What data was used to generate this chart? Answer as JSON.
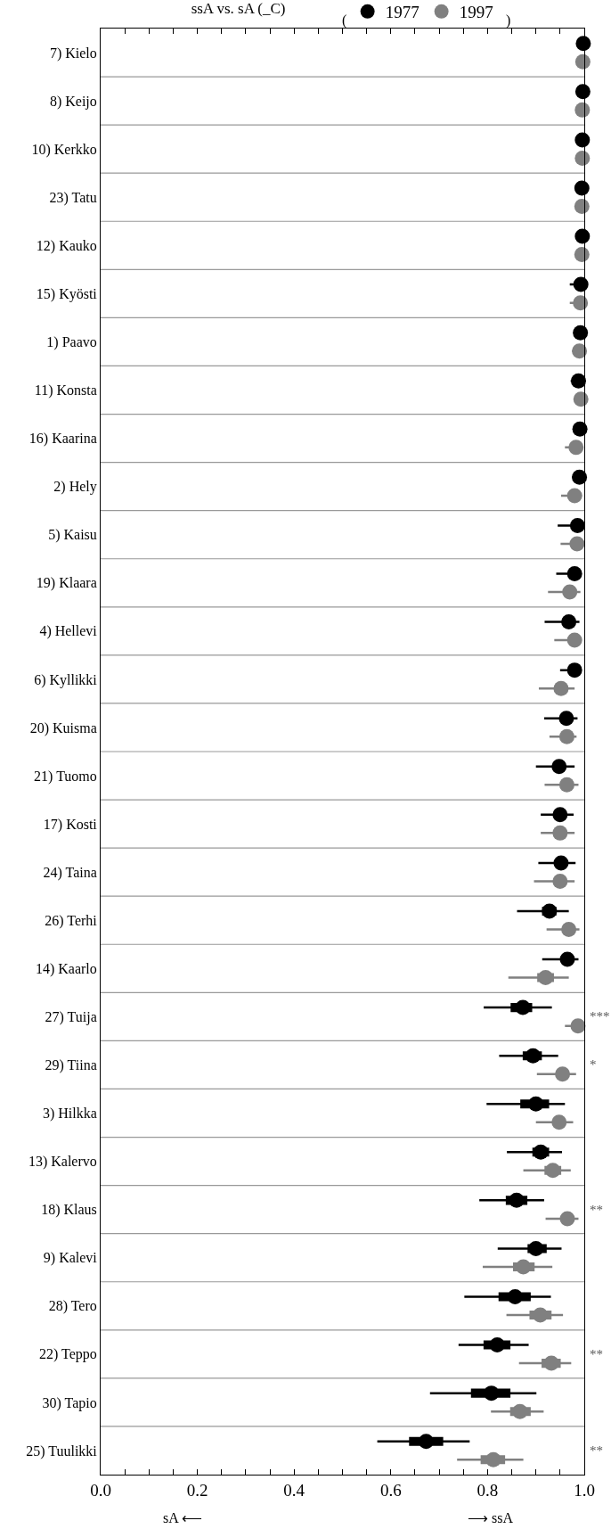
{
  "chart_data": {
    "type": "box",
    "orientation": "horizontal",
    "title": "ssA vs. sA (_C)",
    "legend": "top",
    "marker": "circle",
    "grid": "y",
    "categories": [
      "7) Kielo",
      "8) Keijo",
      "10) Kerkko",
      "23) Tatu",
      "12) Kauko",
      "15) Kyösti",
      "1) Paavo",
      "11) Konsta",
      "16) Kaarina",
      "2) Hely",
      "5) Kaisu",
      "19) Klaara",
      "4) Hellevi",
      "6) Kyllikki",
      "20) Kuisma",
      "21) Tuomo",
      "17) Kosti",
      "24) Taina",
      "26) Terhi",
      "14) Kaarlo",
      "27) Tuija",
      "29) Tiina",
      "3) Hilkka",
      "13) Kalervo",
      "18) Klaus",
      "9) Kalevi",
      "28) Tero",
      "22) Teppo",
      "30) Tapio",
      "25) Tuulikki"
    ],
    "xlim": [
      0,
      1
    ],
    "xticks": [
      {
        "value": 0,
        "label": "0.0"
      },
      {
        "value": 0.05,
        "label": null
      },
      {
        "value": 0.1,
        "label": null
      },
      {
        "value": 0.15,
        "label": null
      },
      0.2,
      {
        "value": 0.25,
        "label": null
      },
      {
        "value": 0.3,
        "label": null
      },
      {
        "value": 0.35,
        "label": null
      },
      0.4,
      {
        "value": 0.45,
        "label": null
      },
      {
        "value": 0.5,
        "label": null
      },
      {
        "value": 0.55,
        "label": null
      },
      0.6,
      {
        "value": 0.65,
        "label": null
      },
      {
        "value": 0.7,
        "label": null
      },
      {
        "value": 0.75,
        "label": null
      },
      0.8,
      {
        "value": 0.85,
        "label": null
      },
      {
        "value": 0.9,
        "label": null
      },
      {
        "value": 0.95,
        "label": null
      },
      {
        "value": 1,
        "label": "1.0"
      }
    ],
    "series": [
      {
        "color": "#000000",
        "boxes": [
          {
            "low": 0.998,
            "q1": 0.998,
            "median": 0.998,
            "q3": 0.998,
            "high": 0.998
          },
          {
            "low": 0.997,
            "q1": 0.997,
            "median": 0.997,
            "q3": 0.997,
            "high": 0.997
          },
          {
            "low": 0.996,
            "q1": 0.996,
            "median": 0.996,
            "q3": 0.996,
            "high": 0.996
          },
          {
            "low": 0.995,
            "q1": 0.995,
            "median": 0.995,
            "q3": 0.995,
            "high": 0.995
          },
          {
            "low": 0.996,
            "q1": 0.996,
            "median": 0.996,
            "q3": 0.996,
            "high": 0.996
          },
          {
            "low": 0.97,
            "q1": 0.993,
            "median": 0.993,
            "q3": 0.993,
            "high": 0.993
          },
          {
            "low": 0.978,
            "q1": 0.992,
            "median": 0.992,
            "q3": 0.992,
            "high": 0.992
          },
          {
            "low": 0.972,
            "q1": 0.988,
            "median": 0.988,
            "q3": 0.988,
            "high": 0.988
          },
          {
            "low": 0.978,
            "q1": 0.991,
            "median": 0.991,
            "q3": 0.991,
            "high": 0.991
          },
          {
            "low": 0.975,
            "q1": 0.99,
            "median": 0.99,
            "q3": 0.99,
            "high": 0.99
          },
          {
            "low": 0.945,
            "q1": 0.986,
            "median": 0.986,
            "q3": 0.986,
            "high": 0.986
          },
          {
            "low": 0.942,
            "q1": 0.98,
            "median": 0.98,
            "q3": 0.98,
            "high": 0.98
          },
          {
            "low": 0.918,
            "q1": 0.968,
            "median": 0.968,
            "q3": 0.968,
            "high": 0.99
          },
          {
            "low": 0.95,
            "q1": 0.98,
            "median": 0.98,
            "q3": 0.98,
            "high": 0.98
          },
          {
            "low": 0.917,
            "q1": 0.963,
            "median": 0.963,
            "q3": 0.963,
            "high": 0.986
          },
          {
            "low": 0.9,
            "q1": 0.948,
            "median": 0.948,
            "q3": 0.948,
            "high": 0.98
          },
          {
            "low": 0.91,
            "q1": 0.95,
            "median": 0.95,
            "q3": 0.95,
            "high": 0.978
          },
          {
            "low": 0.905,
            "q1": 0.952,
            "median": 0.952,
            "q3": 0.952,
            "high": 0.982
          },
          {
            "low": 0.861,
            "q1": 0.915,
            "median": 0.928,
            "q3": 0.94,
            "high": 0.968
          },
          {
            "low": 0.913,
            "q1": 0.965,
            "median": 0.965,
            "q3": 0.965,
            "high": 0.988
          },
          {
            "low": 0.792,
            "q1": 0.85,
            "median": 0.873,
            "q3": 0.89,
            "high": 0.933
          },
          {
            "low": 0.824,
            "q1": 0.875,
            "median": 0.894,
            "q3": 0.91,
            "high": 0.946
          },
          {
            "low": 0.798,
            "q1": 0.87,
            "median": 0.9,
            "q3": 0.925,
            "high": 0.96
          },
          {
            "low": 0.84,
            "q1": 0.895,
            "median": 0.91,
            "q3": 0.925,
            "high": 0.954
          },
          {
            "low": 0.783,
            "q1": 0.84,
            "median": 0.86,
            "q3": 0.88,
            "high": 0.917
          },
          {
            "low": 0.821,
            "q1": 0.885,
            "median": 0.9,
            "q3": 0.92,
            "high": 0.953
          },
          {
            "low": 0.752,
            "q1": 0.825,
            "median": 0.857,
            "q3": 0.887,
            "high": 0.931
          },
          {
            "low": 0.74,
            "q1": 0.794,
            "median": 0.82,
            "q3": 0.845,
            "high": 0.885
          },
          {
            "low": 0.681,
            "q1": 0.768,
            "median": 0.808,
            "q3": 0.845,
            "high": 0.901
          },
          {
            "low": 0.572,
            "q1": 0.64,
            "median": 0.673,
            "q3": 0.706,
            "high": 0.763
          }
        ]
      },
      {
        "color": "#808080",
        "boxes": [
          {
            "low": 0.997,
            "q1": 0.997,
            "median": 0.997,
            "q3": 0.997,
            "high": 0.997
          },
          {
            "low": 0.996,
            "q1": 0.996,
            "median": 0.996,
            "q3": 0.996,
            "high": 0.996
          },
          {
            "low": 0.996,
            "q1": 0.996,
            "median": 0.996,
            "q3": 0.996,
            "high": 0.996
          },
          {
            "low": 0.995,
            "q1": 0.995,
            "median": 0.995,
            "q3": 0.995,
            "high": 0.995
          },
          {
            "low": 0.995,
            "q1": 0.995,
            "median": 0.995,
            "q3": 0.995,
            "high": 0.995
          },
          {
            "low": 0.97,
            "q1": 0.992,
            "median": 0.992,
            "q3": 0.992,
            "high": 0.992
          },
          {
            "low": 0.975,
            "q1": 0.99,
            "median": 0.99,
            "q3": 0.99,
            "high": 0.99
          },
          {
            "low": 0.993,
            "q1": 0.993,
            "median": 0.993,
            "q3": 0.993,
            "high": 0.993
          },
          {
            "low": 0.96,
            "q1": 0.983,
            "median": 0.983,
            "q3": 0.983,
            "high": 0.995
          },
          {
            "low": 0.952,
            "q1": 0.98,
            "median": 0.98,
            "q3": 0.98,
            "high": 0.995
          },
          {
            "low": 0.951,
            "q1": 0.985,
            "median": 0.985,
            "q3": 0.985,
            "high": 0.985
          },
          {
            "low": 0.925,
            "q1": 0.97,
            "median": 0.97,
            "q3": 0.97,
            "high": 0.992
          },
          {
            "low": 0.938,
            "q1": 0.98,
            "median": 0.98,
            "q3": 0.98,
            "high": 0.98
          },
          {
            "low": 0.906,
            "q1": 0.952,
            "median": 0.952,
            "q3": 0.952,
            "high": 0.98
          },
          {
            "low": 0.928,
            "q1": 0.964,
            "median": 0.964,
            "q3": 0.964,
            "high": 0.984
          },
          {
            "low": 0.918,
            "q1": 0.964,
            "median": 0.964,
            "q3": 0.964,
            "high": 0.988
          },
          {
            "low": 0.91,
            "q1": 0.95,
            "median": 0.95,
            "q3": 0.95,
            "high": 0.98
          },
          {
            "low": 0.896,
            "q1": 0.95,
            "median": 0.95,
            "q3": 0.95,
            "high": 0.98
          },
          {
            "low": 0.922,
            "q1": 0.968,
            "median": 0.968,
            "q3": 0.968,
            "high": 0.99
          },
          {
            "low": 0.843,
            "q1": 0.905,
            "median": 0.92,
            "q3": 0.935,
            "high": 0.968
          },
          {
            "low": 0.96,
            "q1": 0.987,
            "median": 0.987,
            "q3": 0.987,
            "high": 0.987
          },
          {
            "low": 0.902,
            "q1": 0.955,
            "median": 0.955,
            "q3": 0.955,
            "high": 0.983
          },
          {
            "low": 0.9,
            "q1": 0.948,
            "median": 0.948,
            "q3": 0.948,
            "high": 0.977
          },
          {
            "low": 0.874,
            "q1": 0.92,
            "median": 0.935,
            "q3": 0.95,
            "high": 0.972
          },
          {
            "low": 0.92,
            "q1": 0.965,
            "median": 0.965,
            "q3": 0.965,
            "high": 0.988
          },
          {
            "low": 0.79,
            "q1": 0.855,
            "median": 0.874,
            "q3": 0.895,
            "high": 0.934
          },
          {
            "low": 0.839,
            "q1": 0.889,
            "median": 0.909,
            "q3": 0.93,
            "high": 0.956
          },
          {
            "low": 0.865,
            "q1": 0.914,
            "median": 0.932,
            "q3": 0.949,
            "high": 0.973
          },
          {
            "low": 0.807,
            "q1": 0.849,
            "median": 0.867,
            "q3": 0.887,
            "high": 0.916
          },
          {
            "low": 0.737,
            "q1": 0.788,
            "median": 0.812,
            "q3": 0.834,
            "high": 0.874
          }
        ]
      },
      {
        "type": "scatter",
        "name": "1977",
        "color": "#000000",
        "values": [
          0.998,
          0.997,
          0.996,
          0.995,
          0.996,
          0.993,
          0.992,
          0.988,
          0.991,
          0.99,
          0.986,
          0.98,
          0.968,
          0.98,
          0.963,
          0.948,
          0.95,
          0.952,
          0.928,
          0.965,
          0.873,
          0.894,
          0.9,
          0.91,
          0.86,
          0.9,
          0.857,
          0.82,
          0.808,
          0.673
        ]
      },
      {
        "type": "scatter",
        "name": "1997",
        "color": "#808080",
        "values": [
          0.997,
          0.996,
          0.996,
          0.995,
          0.995,
          0.992,
          0.99,
          0.993,
          0.983,
          0.98,
          0.985,
          0.97,
          0.98,
          0.952,
          0.964,
          0.964,
          0.95,
          0.95,
          0.968,
          0.92,
          0.987,
          0.955,
          0.948,
          0.935,
          0.965,
          0.874,
          0.909,
          0.932,
          0.867,
          0.812
        ]
      }
    ],
    "annotations": [
      "(",
      ")",
      "sA ⟵",
      "⟶ ssA",
      "***",
      "*",
      "**",
      "**",
      "**"
    ]
  }
}
